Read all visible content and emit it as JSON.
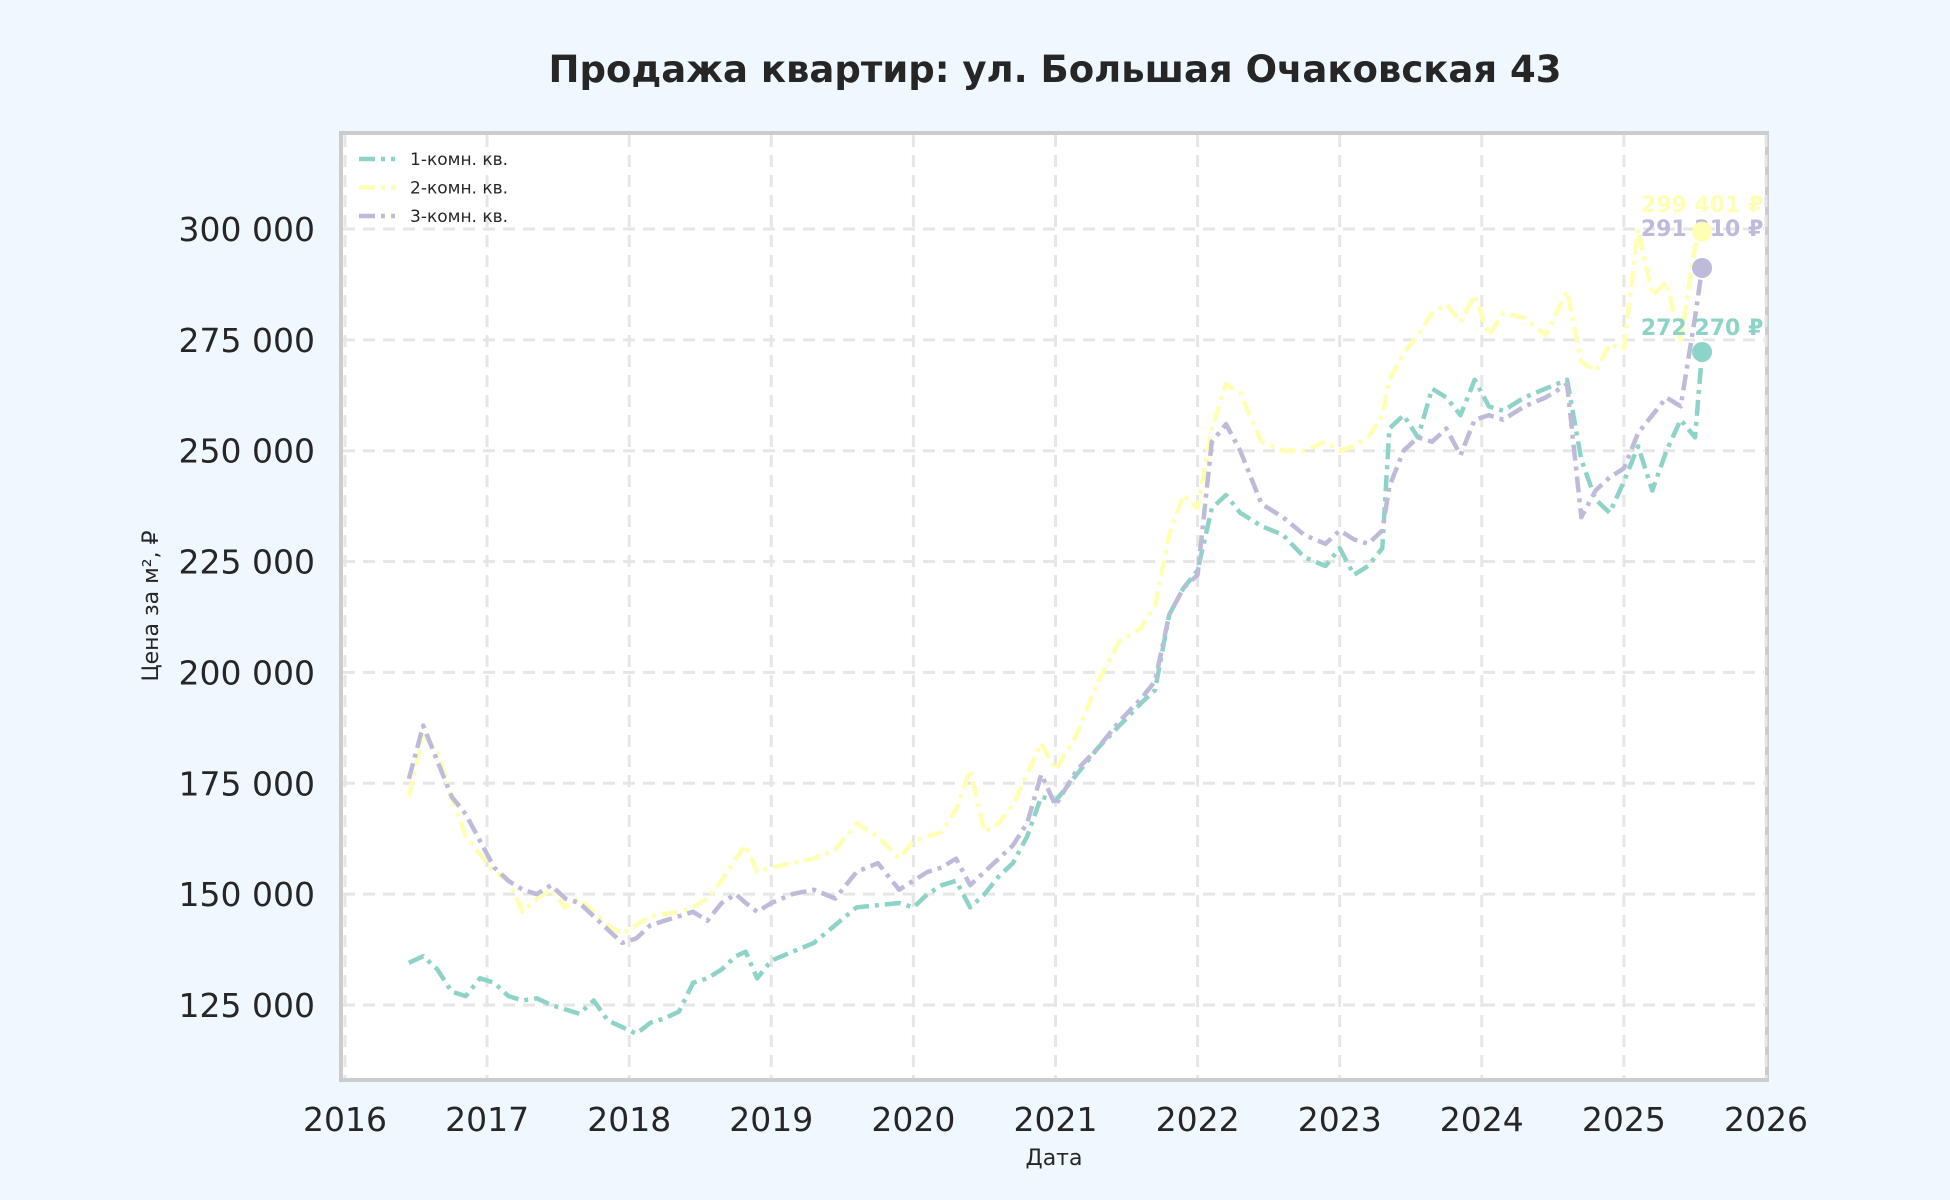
{
  "title": "Продажа квартир: ул. Большая Очаковская 43",
  "colors": {
    "background": "#eff7ff",
    "plot_background": "#ffffff",
    "frame": "#cccccc",
    "grid": "#e6e6e6",
    "one_room": "#8dd3c7",
    "two_room": "#ffffb3",
    "three_room": "#bebada"
  },
  "chart_data": {
    "type": "line",
    "title": "Продажа квартир: ул. Большая Очаковская 43",
    "xlabel": "Дата",
    "ylabel": "Цена за м², ₽",
    "xlim": [
      2016,
      2026
    ],
    "ylim": [
      108000,
      321600
    ],
    "xticks": [
      "2016",
      "2017",
      "2018",
      "2019",
      "2020",
      "2021",
      "2022",
      "2023",
      "2024",
      "2025",
      "2026"
    ],
    "yticks": [
      125000,
      150000,
      175000,
      200000,
      225000,
      250000,
      275000,
      300000
    ],
    "ytick_labels": [
      "125 000",
      "150 000",
      "175 000",
      "200 000",
      "225 000",
      "250 000",
      "275 000",
      "300 000"
    ],
    "grid": true,
    "line_style": "dash-dot",
    "legend_position": "upper left",
    "legend": [
      "1-комн. кв.",
      "2-комн. кв.",
      "3-комн. кв."
    ],
    "series": [
      {
        "name": "1-комн. кв.",
        "color": "#8dd3c7",
        "x": [
          2016.45,
          2016.55,
          2016.65,
          2016.75,
          2016.85,
          2016.95,
          2017.05,
          2017.15,
          2017.25,
          2017.35,
          2017.45,
          2017.55,
          2017.65,
          2017.75,
          2017.85,
          2017.95,
          2018.05,
          2018.15,
          2018.25,
          2018.35,
          2018.45,
          2018.55,
          2018.65,
          2018.75,
          2018.82,
          2018.9,
          2019.0,
          2019.15,
          2019.3,
          2019.45,
          2019.6,
          2019.75,
          2019.9,
          2020.0,
          2020.1,
          2020.2,
          2020.3,
          2020.4,
          2020.5,
          2020.6,
          2020.7,
          2020.8,
          2020.9,
          2021.0,
          2021.15,
          2021.3,
          2021.45,
          2021.6,
          2021.7,
          2021.8,
          2021.9,
          2022.0,
          2022.1,
          2022.2,
          2022.3,
          2022.45,
          2022.6,
          2022.75,
          2022.9,
          2023.0,
          2023.1,
          2023.2,
          2023.3,
          2023.35,
          2023.45,
          2023.55,
          2023.65,
          2023.75,
          2023.85,
          2023.95,
          2024.05,
          2024.15,
          2024.3,
          2024.45,
          2024.6,
          2024.7,
          2024.8,
          2024.9,
          2025.0,
          2025.1,
          2025.2,
          2025.3,
          2025.4,
          2025.5,
          2025.55
        ],
        "values": [
          134500,
          136000,
          133000,
          128000,
          127000,
          131000,
          130000,
          127000,
          126000,
          126500,
          125000,
          124000,
          123000,
          126000,
          121500,
          120000,
          118500,
          121000,
          122000,
          123500,
          130000,
          131000,
          133000,
          136000,
          137000,
          131000,
          135000,
          137000,
          139000,
          143000,
          147000,
          147500,
          148000,
          147000,
          150000,
          152000,
          153000,
          147000,
          150000,
          154000,
          157000,
          163000,
          172000,
          171000,
          177000,
          183000,
          188000,
          193000,
          196000,
          213000,
          219000,
          223000,
          237000,
          240000,
          236000,
          233000,
          231000,
          226000,
          224000,
          228000,
          222000,
          224000,
          228000,
          255000,
          258000,
          253000,
          264000,
          262000,
          258000,
          266000,
          260000,
          259000,
          262000,
          264000,
          266000,
          248000,
          239000,
          236000,
          243000,
          251000,
          241000,
          250000,
          257000,
          253000,
          272270
        ]
      },
      {
        "name": "2-комн. кв.",
        "color": "#ffffb3",
        "x": [
          2016.45,
          2016.55,
          2016.65,
          2016.75,
          2016.85,
          2016.95,
          2017.05,
          2017.15,
          2017.25,
          2017.35,
          2017.45,
          2017.55,
          2017.65,
          2017.75,
          2017.85,
          2017.95,
          2018.05,
          2018.15,
          2018.25,
          2018.35,
          2018.45,
          2018.55,
          2018.65,
          2018.75,
          2018.82,
          2018.9,
          2019.0,
          2019.15,
          2019.3,
          2019.45,
          2019.6,
          2019.75,
          2019.9,
          2020.0,
          2020.1,
          2020.2,
          2020.3,
          2020.4,
          2020.5,
          2020.6,
          2020.7,
          2020.8,
          2020.9,
          2021.0,
          2021.15,
          2021.3,
          2021.45,
          2021.6,
          2021.7,
          2021.8,
          2021.9,
          2022.0,
          2022.1,
          2022.2,
          2022.3,
          2022.45,
          2022.6,
          2022.75,
          2022.9,
          2023.0,
          2023.1,
          2023.2,
          2023.3,
          2023.35,
          2023.45,
          2023.55,
          2023.65,
          2023.75,
          2023.85,
          2023.95,
          2024.05,
          2024.15,
          2024.3,
          2024.45,
          2024.6,
          2024.7,
          2024.8,
          2024.9,
          2025.0,
          2025.1,
          2025.2,
          2025.3,
          2025.4,
          2025.5,
          2025.55
        ],
        "values": [
          172000,
          186000,
          182000,
          172000,
          163000,
          159000,
          155000,
          153000,
          146000,
          149000,
          151000,
          147000,
          149000,
          146000,
          143000,
          141000,
          143000,
          145000,
          145500,
          146000,
          147000,
          149000,
          153000,
          158000,
          161000,
          155000,
          156000,
          157000,
          158000,
          160000,
          166000,
          163000,
          158000,
          162000,
          163000,
          164000,
          169000,
          178000,
          164000,
          166000,
          170000,
          177000,
          184000,
          178000,
          186000,
          198000,
          207000,
          210000,
          215000,
          231000,
          240000,
          237000,
          255000,
          265000,
          263000,
          252000,
          250000,
          250000,
          252000,
          250000,
          251000,
          253000,
          258000,
          266000,
          272000,
          276000,
          281000,
          283000,
          279000,
          285000,
          276000,
          281000,
          280000,
          276000,
          286000,
          270000,
          268000,
          274000,
          273000,
          300000,
          285000,
          288000,
          275000,
          296000,
          299401
        ]
      },
      {
        "name": "3-комн. кв.",
        "color": "#bebada",
        "x": [
          2016.45,
          2016.55,
          2016.65,
          2016.75,
          2016.85,
          2016.95,
          2017.05,
          2017.15,
          2017.25,
          2017.35,
          2017.45,
          2017.55,
          2017.65,
          2017.75,
          2017.85,
          2017.95,
          2018.05,
          2018.15,
          2018.25,
          2018.35,
          2018.45,
          2018.55,
          2018.65,
          2018.75,
          2018.82,
          2018.9,
          2019.0,
          2019.15,
          2019.3,
          2019.45,
          2019.6,
          2019.75,
          2019.9,
          2020.0,
          2020.1,
          2020.2,
          2020.3,
          2020.4,
          2020.5,
          2020.6,
          2020.7,
          2020.8,
          2020.9,
          2021.0,
          2021.15,
          2021.3,
          2021.45,
          2021.6,
          2021.7,
          2021.8,
          2021.9,
          2022.0,
          2022.1,
          2022.2,
          2022.3,
          2022.45,
          2022.6,
          2022.75,
          2022.9,
          2023.0,
          2023.1,
          2023.2,
          2023.3,
          2023.35,
          2023.45,
          2023.55,
          2023.65,
          2023.75,
          2023.85,
          2023.95,
          2024.05,
          2024.15,
          2024.3,
          2024.45,
          2024.6,
          2024.7,
          2024.8,
          2024.9,
          2025.0,
          2025.1,
          2025.2,
          2025.3,
          2025.4,
          2025.5,
          2025.55
        ],
        "values": [
          176000,
          188000,
          180000,
          172000,
          168000,
          162000,
          156000,
          153000,
          151000,
          150000,
          152000,
          149000,
          148000,
          145000,
          142000,
          139000,
          140000,
          143000,
          144000,
          145000,
          146000,
          144000,
          148000,
          150000,
          148000,
          146000,
          148000,
          150000,
          151000,
          149000,
          155000,
          157000,
          151000,
          153000,
          155000,
          156000,
          158000,
          152000,
          155000,
          158000,
          161000,
          166000,
          177000,
          170000,
          178000,
          183000,
          189000,
          194000,
          198000,
          213000,
          219000,
          222000,
          252000,
          256000,
          250000,
          238000,
          235000,
          231000,
          229000,
          232000,
          230000,
          229000,
          232000,
          242000,
          250000,
          253000,
          252000,
          255000,
          249000,
          257000,
          258000,
          257000,
          260000,
          262000,
          265000,
          235000,
          241000,
          244000,
          246000,
          254000,
          258000,
          262000,
          260000,
          280000,
          291210
        ]
      }
    ],
    "annotations": [
      {
        "text": "299 401 ₽",
        "series": "2-комн. кв.",
        "x": 2025.55,
        "y": 299401
      },
      {
        "text": "291 210 ₽",
        "series": "3-комн. кв.",
        "x": 2025.55,
        "y": 291210
      },
      {
        "text": "272 270 ₽",
        "series": "1-комн. кв.",
        "x": 2025.55,
        "y": 272270
      }
    ]
  }
}
